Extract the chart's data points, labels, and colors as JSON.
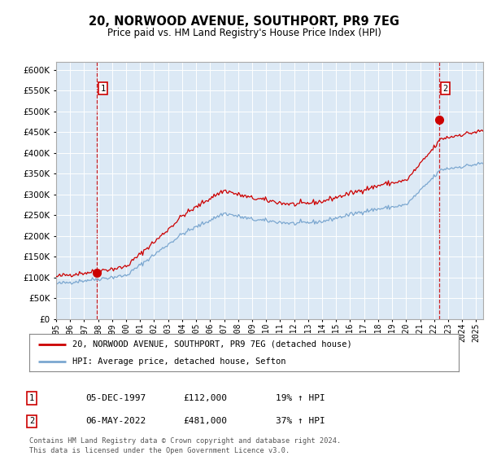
{
  "title": "20, NORWOOD AVENUE, SOUTHPORT, PR9 7EG",
  "subtitle": "Price paid vs. HM Land Registry's House Price Index (HPI)",
  "legend_line1": "20, NORWOOD AVENUE, SOUTHPORT, PR9 7EG (detached house)",
  "legend_line2": "HPI: Average price, detached house, Sefton",
  "annotation1_date": "05-DEC-1997",
  "annotation1_price": "£112,000",
  "annotation1_hpi": "19% ↑ HPI",
  "annotation2_date": "06-MAY-2022",
  "annotation2_price": "£481,000",
  "annotation2_hpi": "37% ↑ HPI",
  "footer": "Contains HM Land Registry data © Crown copyright and database right 2024.\nThis data is licensed under the Open Government Licence v3.0.",
  "bg_color": "#dce9f5",
  "red_color": "#cc0000",
  "blue_color": "#7ba7d0",
  "dashed_color": "#cc0000",
  "ylim": [
    0,
    620000
  ],
  "yticks": [
    0,
    50000,
    100000,
    150000,
    200000,
    250000,
    300000,
    350000,
    400000,
    450000,
    500000,
    550000,
    600000
  ],
  "sale1_x": 1997.92,
  "sale1_y": 112000,
  "sale2_x": 2022.37,
  "sale2_y": 481000,
  "xmin": 1995.0,
  "xmax": 2025.5
}
